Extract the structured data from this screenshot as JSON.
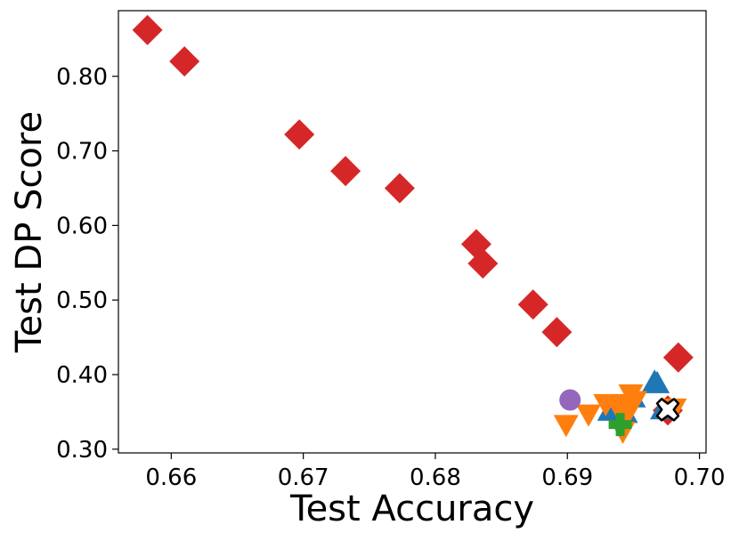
{
  "chart_data": {
    "type": "scatter",
    "title": "",
    "xlabel": "Test Accuracy",
    "ylabel": "Test DP Score",
    "xlim": [
      0.656,
      0.7005
    ],
    "ylim": [
      0.295,
      0.888
    ],
    "xticks": [
      0.66,
      0.67,
      0.68,
      0.69,
      0.7
    ],
    "xtick_labels": [
      "0.66",
      "0.67",
      "0.68",
      "0.69",
      "0.70"
    ],
    "yticks": [
      0.3,
      0.4,
      0.5,
      0.6,
      0.7,
      0.8
    ],
    "ytick_labels": [
      "0.30",
      "0.40",
      "0.50",
      "0.60",
      "0.70",
      "0.80"
    ],
    "grid": false,
    "legend": "none",
    "series": [
      {
        "marker": "diamond",
        "color": "#d62728",
        "points": [
          [
            0.6582,
            0.862
          ],
          [
            0.661,
            0.82
          ],
          [
            0.6697,
            0.722
          ],
          [
            0.6732,
            0.673
          ],
          [
            0.6773,
            0.65
          ],
          [
            0.6831,
            0.575
          ],
          [
            0.6836,
            0.549
          ],
          [
            0.6874,
            0.494
          ],
          [
            0.6892,
            0.457
          ],
          [
            0.6984,
            0.423
          ],
          [
            0.6976,
            0.352
          ]
        ]
      },
      {
        "marker": "triangle-up",
        "color": "#1f77b4",
        "points": [
          [
            0.6966,
            0.389
          ],
          [
            0.6968,
            0.387
          ],
          [
            0.695,
            0.368
          ],
          [
            0.6932,
            0.35
          ],
          [
            0.6944,
            0.347
          ],
          [
            0.6972,
            0.352
          ]
        ]
      },
      {
        "marker": "triangle-down",
        "color": "#ff7f0e",
        "points": [
          [
            0.6899,
            0.334
          ],
          [
            0.6916,
            0.348
          ],
          [
            0.6929,
            0.362
          ],
          [
            0.6939,
            0.355
          ],
          [
            0.6944,
            0.362
          ],
          [
            0.6948,
            0.375
          ],
          [
            0.6945,
            0.347
          ],
          [
            0.6942,
            0.325
          ],
          [
            0.6951,
            0.366
          ],
          [
            0.6981,
            0.356
          ]
        ]
      },
      {
        "marker": "circle",
        "color": "#9467bd",
        "points": [
          [
            0.6902,
            0.366
          ]
        ]
      },
      {
        "marker": "plus",
        "color": "#2ca02c",
        "points": [
          [
            0.694,
            0.333
          ]
        ]
      },
      {
        "marker": "x",
        "color": "#ffffff",
        "edgecolor": "#000000",
        "points": [
          [
            0.6976,
            0.353
          ]
        ]
      }
    ]
  }
}
